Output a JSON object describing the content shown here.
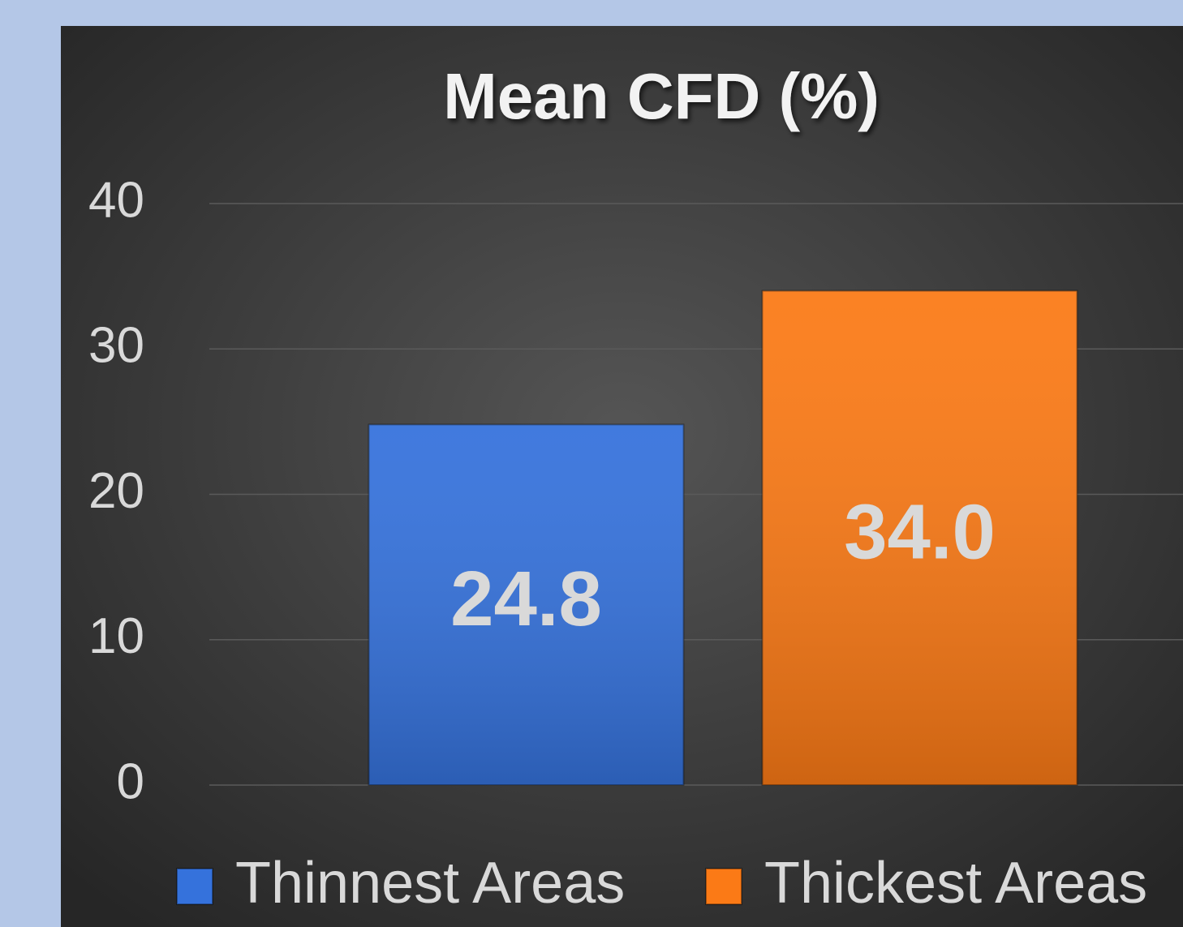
{
  "chart_data": {
    "type": "bar",
    "title": "Mean CFD (%)",
    "categories": [
      null
    ],
    "series": [
      {
        "name": "Thinnest Areas",
        "color": "#3572dc",
        "values": [
          24.8
        ],
        "value_labels": [
          "24.8"
        ]
      },
      {
        "name": "Thickest Areas",
        "color": "#fb7a16",
        "values": [
          34.0
        ],
        "value_labels": [
          "34.0"
        ]
      }
    ],
    "ylim": [
      0,
      40
    ],
    "yticks": [
      0,
      10,
      20,
      30,
      40
    ],
    "grid": true,
    "legend": "bottom"
  }
}
